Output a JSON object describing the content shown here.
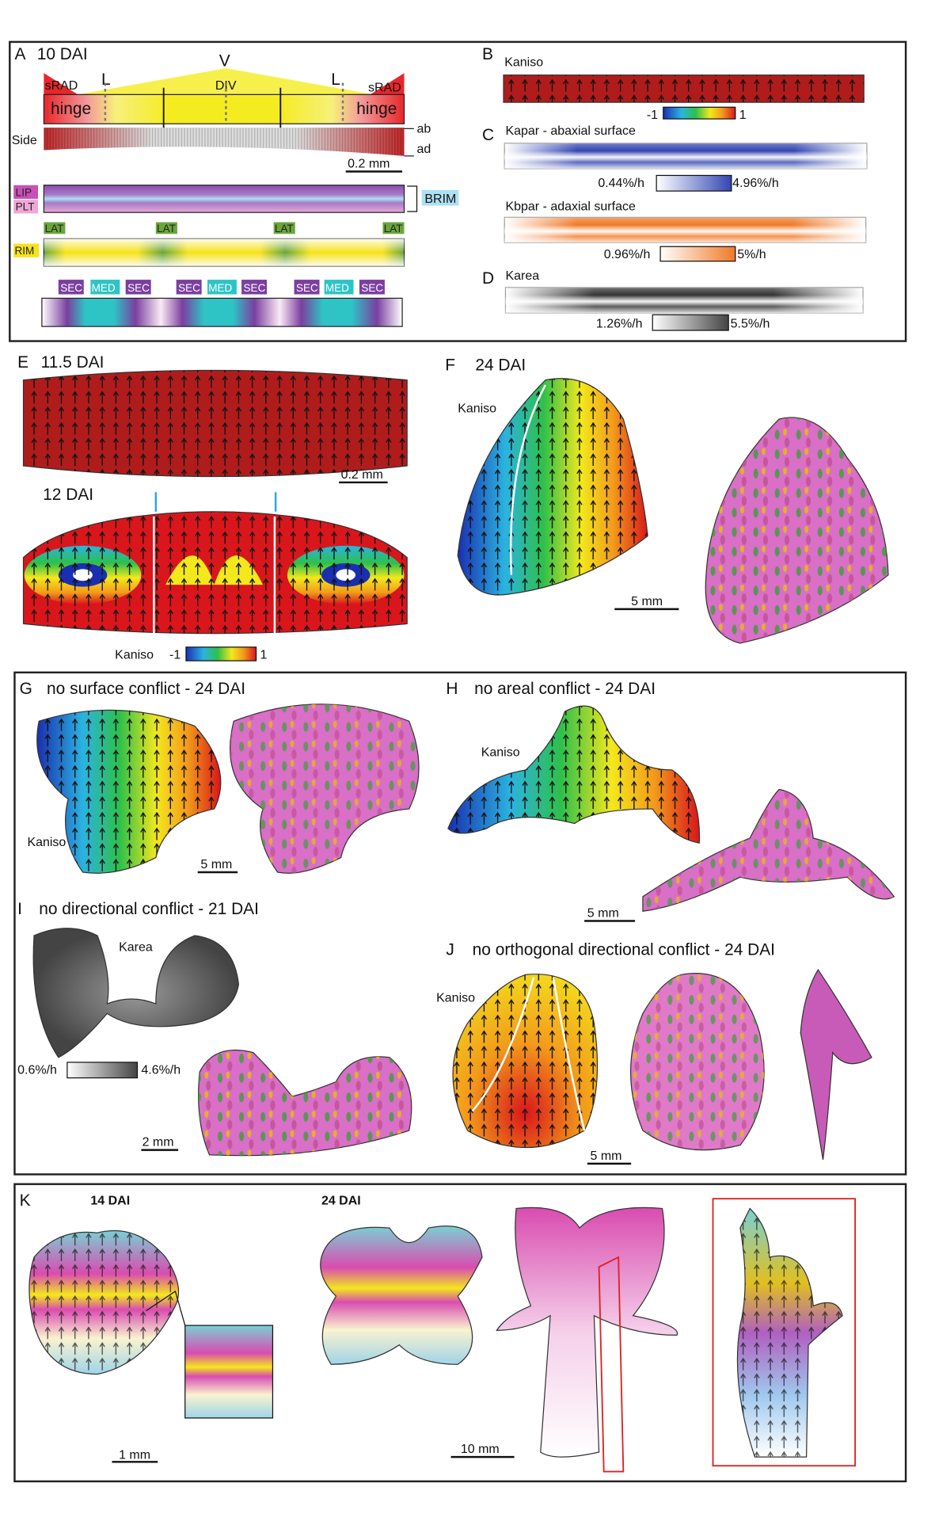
{
  "panelA": {
    "letter": "A",
    "title": "10 DAI",
    "V": "V",
    "L": "L",
    "DIV": "DIV",
    "sRAD": "sRAD",
    "hinge": "hinge",
    "side": "Side",
    "ab": "ab",
    "ad": "ad",
    "scale": "0.2 mm",
    "LIP": "LIP",
    "PLT": "PLT",
    "BRIM": "BRIM",
    "LAT": "LAT",
    "RIM": "RIM",
    "SEC": "SEC",
    "MED": "MED"
  },
  "panelB": {
    "letter": "B",
    "title": "Kaniso",
    "min": "-1",
    "max": "1"
  },
  "panelC": {
    "letter": "C",
    "abaxial": "Kapar - abaxial surface",
    "ab_min": "0.44%/h",
    "ab_max": "4.96%/h",
    "adaxial": "Kbpar - adaxial surface",
    "ad_min": "0.96%/h",
    "ad_max": "5%/h"
  },
  "panelD": {
    "letter": "D",
    "title": "Karea",
    "min": "1.26%/h",
    "max": "5.5%/h"
  },
  "panelE": {
    "letter": "E",
    "title1": "11.5 DAI",
    "scale": "0.2 mm",
    "title2": "12 DAI",
    "kaniso": "Kaniso",
    "min": "-1",
    "max": "1"
  },
  "panelF": {
    "letter": "F",
    "title": "24 DAI",
    "kaniso": "Kaniso",
    "scale": "5 mm"
  },
  "panelG": {
    "letter": "G",
    "title": "no surface conflict - 24 DAI",
    "kaniso": "Kaniso",
    "scale": "5 mm"
  },
  "panelH": {
    "letter": "H",
    "title": "no areal conflict - 24 DAI",
    "kaniso": "Kaniso",
    "scale": "5 mm"
  },
  "panelI": {
    "letter": "I",
    "title": "no directional conflict - 21 DAI",
    "karea": "Karea",
    "min": "0.6%/h",
    "max": "4.6%/h",
    "scale": "2 mm"
  },
  "panelJ": {
    "letter": "J",
    "title": "no orthogonal directional conflict - 24 DAI",
    "kaniso": "Kaniso",
    "scale": "5 mm"
  },
  "panelK": {
    "letter": "K",
    "title1": "14 DAI",
    "title2": "24 DAI",
    "scale1": "1 mm",
    "scale2": "10 mm"
  },
  "colors": {
    "kaniso_red": "#b01c1c",
    "hinge_red": "#e8262b",
    "div_yellow": "#f5ec1f",
    "lip_purple": "#8e4bb0",
    "brim_blue": "#aee0f2",
    "lat_green": "#6aa53a",
    "rim_yellow": "#f6e21a",
    "sec_purple": "#7b3fa0",
    "med_cyan": "#2ec4c6",
    "kapar_blue": "#3346b3",
    "kbpar_orange": "#f07a27",
    "karea_gray": "#444444",
    "petal_pink": "#e07ac8"
  }
}
